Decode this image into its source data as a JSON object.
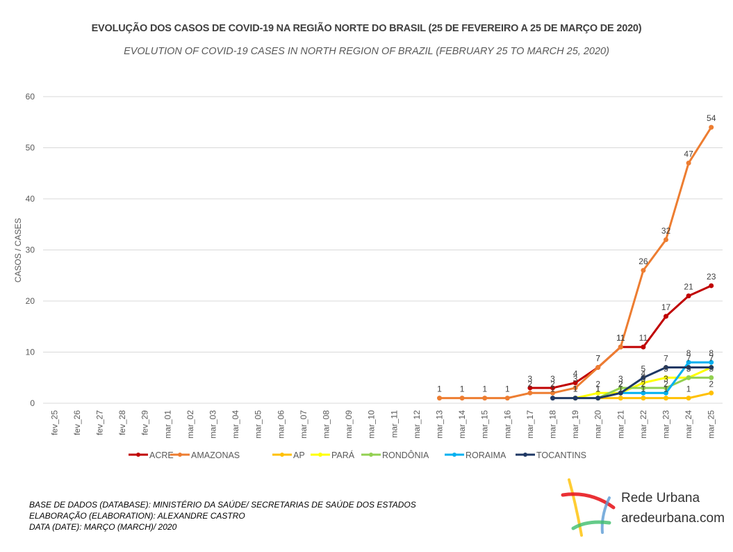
{
  "title": "EVOLUÇÃO DOS CASOS DE COVID-19 NA REGIÃO NORTE DO BRASIL (25 DE FEVEREIRO A 25 DE MARÇO DE 2020)",
  "subtitle": "EVOLUTION OF COVID-19 CASES IN NORTH REGION OF BRAZIL (FEBRUARY 25 TO MARCH 25, 2020)",
  "footer": {
    "line1": "BASE DE DADOS (DATABASE): MINISTÉRIO DA SAÚDE/ SECRETARIAS DE SAÚDE DOS ESTADOS",
    "line2": "ELABORAÇÃO (ELABORATION): ALEXANDRE CASTRO",
    "line3": "DATA (DATE): MARÇO (MARCH)/ 2020"
  },
  "logo": {
    "name": "Rede Urbana",
    "site": "aredeurbana.com"
  },
  "chart_data": {
    "type": "line",
    "title": "EVOLUÇÃO DOS CASOS DE COVID-19 NA REGIÃO NORTE DO BRASIL (25 DE FEVEREIRO A 25 DE MARÇO DE 2020)",
    "subtitle": "EVOLUTION OF COVID-19 CASES IN NORTH REGION OF BRAZIL (FEBRUARY 25 TO MARCH 25, 2020)",
    "xlabel": "",
    "ylabel": "CASOS / CASES",
    "ylim": [
      0,
      60
    ],
    "yticks": [
      0,
      10,
      20,
      30,
      40,
      50,
      60
    ],
    "grid": "horizontal",
    "legend_position": "bottom",
    "categories": [
      "fev_25",
      "fev_26",
      "fev_27",
      "fev_28",
      "fev_29",
      "mar_01",
      "mar_02",
      "mar_03",
      "mar_04",
      "mar_05",
      "mar_06",
      "mar_07",
      "mar_08",
      "mar_09",
      "mar_10",
      "mar_11",
      "mar_12",
      "mar_13",
      "mar_14",
      "mar_15",
      "mar_16",
      "mar_17",
      "mar_18",
      "mar_19",
      "mar_20",
      "mar_21",
      "mar_22",
      "mar_23",
      "mar_24",
      "mar_25"
    ],
    "series": [
      {
        "name": "ACRE",
        "color": "#C00000",
        "values": [
          null,
          null,
          null,
          null,
          null,
          null,
          null,
          null,
          null,
          null,
          null,
          null,
          null,
          null,
          null,
          null,
          null,
          null,
          null,
          null,
          null,
          3,
          3,
          4,
          7,
          11,
          11,
          17,
          21,
          23
        ]
      },
      {
        "name": "AMAZONAS",
        "color": "#ED7D31",
        "values": [
          null,
          null,
          null,
          null,
          null,
          null,
          null,
          null,
          null,
          null,
          null,
          null,
          null,
          null,
          null,
          null,
          null,
          1,
          1,
          1,
          1,
          2,
          2,
          3,
          7,
          11,
          26,
          32,
          47,
          54
        ]
      },
      {
        "name": "AP",
        "color": "#FFC000",
        "values": [
          null,
          null,
          null,
          null,
          null,
          null,
          null,
          null,
          null,
          null,
          null,
          null,
          null,
          null,
          null,
          null,
          null,
          null,
          null,
          null,
          null,
          null,
          null,
          null,
          1,
          1,
          1,
          1,
          1,
          2
        ]
      },
      {
        "name": "PARÁ",
        "color": "#FFFF00",
        "values": [
          null,
          null,
          null,
          null,
          null,
          null,
          null,
          null,
          null,
          null,
          null,
          null,
          null,
          null,
          null,
          null,
          null,
          null,
          null,
          null,
          null,
          null,
          null,
          1,
          2,
          2,
          4,
          5,
          5,
          7
        ]
      },
      {
        "name": "RONDÔNIA",
        "color": "#92D050",
        "values": [
          null,
          null,
          null,
          null,
          null,
          null,
          null,
          null,
          null,
          null,
          null,
          null,
          null,
          null,
          null,
          null,
          null,
          null,
          null,
          null,
          null,
          null,
          null,
          null,
          1,
          3,
          3,
          3,
          5,
          5
        ]
      },
      {
        "name": "RORAIMA",
        "color": "#00B0F0",
        "values": [
          null,
          null,
          null,
          null,
          null,
          null,
          null,
          null,
          null,
          null,
          null,
          null,
          null,
          null,
          null,
          null,
          null,
          null,
          null,
          null,
          null,
          null,
          null,
          null,
          null,
          2,
          2,
          2,
          8,
          8
        ]
      },
      {
        "name": "TOCANTINS",
        "color": "#1F3864",
        "values": [
          null,
          null,
          null,
          null,
          null,
          null,
          null,
          null,
          null,
          null,
          null,
          null,
          null,
          null,
          null,
          null,
          null,
          null,
          null,
          null,
          null,
          null,
          1,
          1,
          1,
          2,
          5,
          7,
          7,
          7
        ]
      }
    ]
  }
}
